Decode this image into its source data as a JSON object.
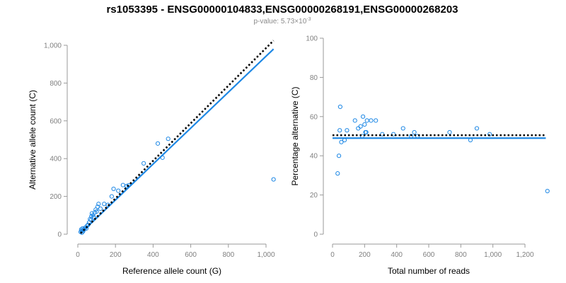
{
  "title": "rs1053395 - ENSG00000104833,ENSG00000268191,ENSG00000268203",
  "subtitle": {
    "prefix": "p-value: 5.73×10",
    "exponent": "-3"
  },
  "colors": {
    "fit_line": "#1e88e5",
    "expected_line": "#000000",
    "points": "#1e88e5",
    "axis": "#9a9a9a"
  },
  "chart_data": [
    {
      "type": "scatter",
      "xlabel": "Reference allele count (G)",
      "ylabel": "Alternative allele count (C)",
      "xlim": [
        0,
        1060
      ],
      "ylim": [
        0,
        1000
      ],
      "xticks": [
        0,
        200,
        400,
        600,
        800,
        1000
      ],
      "yticks": [
        0,
        200,
        400,
        600,
        800,
        1000
      ],
      "xtick_labels": [
        "0",
        "200",
        "400",
        "600",
        "800",
        "1,000"
      ],
      "ytick_labels": [
        "0",
        "200",
        "400",
        "600",
        "800",
        "1,000"
      ],
      "points": [
        [
          15,
          12
        ],
        [
          18,
          25
        ],
        [
          20,
          18
        ],
        [
          22,
          8
        ],
        [
          25,
          30
        ],
        [
          28,
          15
        ],
        [
          30,
          22
        ],
        [
          35,
          28
        ],
        [
          40,
          35
        ],
        [
          45,
          30
        ],
        [
          50,
          45
        ],
        [
          55,
          50
        ],
        [
          60,
          62
        ],
        [
          65,
          80
        ],
        [
          70,
          75
        ],
        [
          72,
          95
        ],
        [
          75,
          110
        ],
        [
          80,
          100
        ],
        [
          85,
          90
        ],
        [
          90,
          115
        ],
        [
          95,
          130
        ],
        [
          100,
          120
        ],
        [
          105,
          145
        ],
        [
          110,
          160
        ],
        [
          120,
          135
        ],
        [
          140,
          160
        ],
        [
          160,
          155
        ],
        [
          180,
          200
        ],
        [
          190,
          240
        ],
        [
          215,
          230
        ],
        [
          240,
          260
        ],
        [
          260,
          255
        ],
        [
          270,
          258
        ],
        [
          350,
          375
        ],
        [
          425,
          480
        ],
        [
          450,
          405
        ],
        [
          480,
          505
        ],
        [
          1040,
          290
        ]
      ],
      "series": [
        {
          "name": "fit",
          "style": "solid",
          "x": [
            15,
            1040
          ],
          "y": [
            5,
            980
          ]
        },
        {
          "name": "expected",
          "style": "dotted",
          "x": [
            15,
            1040
          ],
          "y": [
            5,
            1025
          ]
        }
      ],
      "grid": false
    },
    {
      "type": "scatter",
      "xlabel": "Total number of reads",
      "ylabel": "Percentage alternative (C)",
      "xlim": [
        -50,
        1370
      ],
      "ylim": [
        0,
        100
      ],
      "xticks": [
        0,
        200,
        400,
        600,
        800,
        1000,
        1200
      ],
      "yticks": [
        0,
        20,
        40,
        60,
        80,
        100
      ],
      "xtick_labels": [
        "0",
        "200",
        "400",
        "600",
        "800",
        "1,000",
        "1,200"
      ],
      "ytick_labels": [
        "0",
        "20",
        "40",
        "60",
        "80",
        "100"
      ],
      "points": [
        [
          32,
          31
        ],
        [
          40,
          40
        ],
        [
          45,
          53
        ],
        [
          48,
          65
        ],
        [
          55,
          47
        ],
        [
          75,
          48
        ],
        [
          90,
          53
        ],
        [
          140,
          58
        ],
        [
          160,
          54
        ],
        [
          175,
          55
        ],
        [
          185,
          50
        ],
        [
          190,
          60
        ],
        [
          200,
          56
        ],
        [
          205,
          52
        ],
        [
          210,
          52
        ],
        [
          215,
          58
        ],
        [
          240,
          58
        ],
        [
          270,
          58
        ],
        [
          310,
          51
        ],
        [
          380,
          51
        ],
        [
          440,
          54
        ],
        [
          490,
          50
        ],
        [
          510,
          52
        ],
        [
          530,
          50
        ],
        [
          730,
          52
        ],
        [
          860,
          48
        ],
        [
          900,
          54
        ],
        [
          980,
          51
        ],
        [
          1340,
          22
        ]
      ],
      "series": [
        {
          "name": "fit",
          "style": "solid",
          "x": [
            0,
            1330
          ],
          "y": [
            49,
            49
          ]
        },
        {
          "name": "expected",
          "style": "dotted",
          "x": [
            0,
            1330
          ],
          "y": [
            50.5,
            50.5
          ]
        }
      ],
      "grid": false
    }
  ]
}
